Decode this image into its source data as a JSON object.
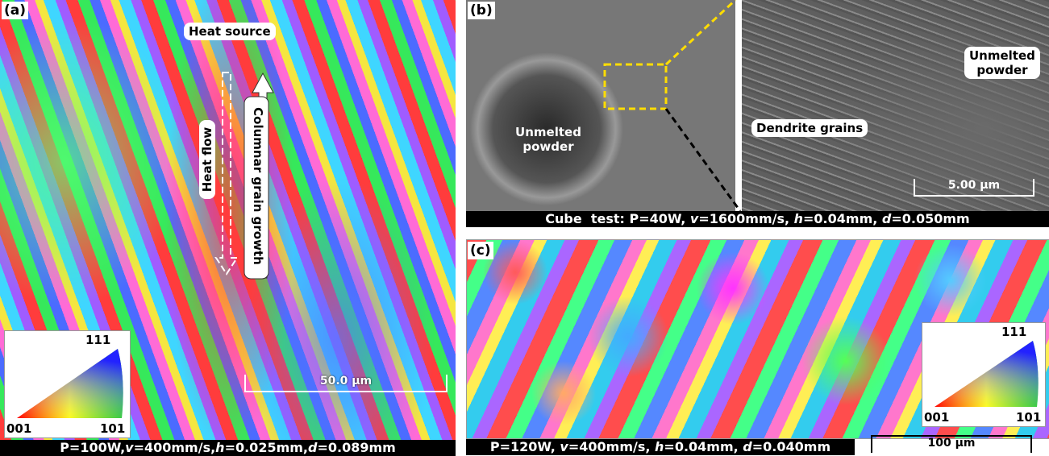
{
  "panel_a": {
    "label": "(a)",
    "heat_source": "Heat source",
    "heat_flow": "Heat flow",
    "columnar_growth": "Columnar grain growth",
    "legend": {
      "top": "111",
      "left": "001",
      "right": "101"
    },
    "scale_bar": "50.0 μm",
    "caption": [
      "P=100W,",
      "v",
      "=400mm/s,",
      "h",
      "=0.025mm,",
      "d",
      "=0.089mm"
    ]
  },
  "panel_b": {
    "label": "(b)",
    "left_label": [
      "Unmelted",
      "powder"
    ],
    "dendrite_label": "Dendrite grains",
    "right_label": [
      "Unmelted",
      "powder"
    ],
    "scale_bar": "5.00 μm",
    "caption": [
      "Cube  test: P=40W, ",
      "v",
      "=1600mm/s, ",
      "h",
      "=0.04mm, ",
      "d",
      "=0.050mm"
    ]
  },
  "panel_c": {
    "label": "(c)",
    "legend": {
      "top": "111",
      "left": "001",
      "right": "101"
    },
    "scale_bar": "100 μm",
    "caption": [
      "P=120W, ",
      "v",
      "=400mm/s, ",
      "h",
      "=0.04mm, ",
      "d",
      "=0.040mm"
    ]
  }
}
